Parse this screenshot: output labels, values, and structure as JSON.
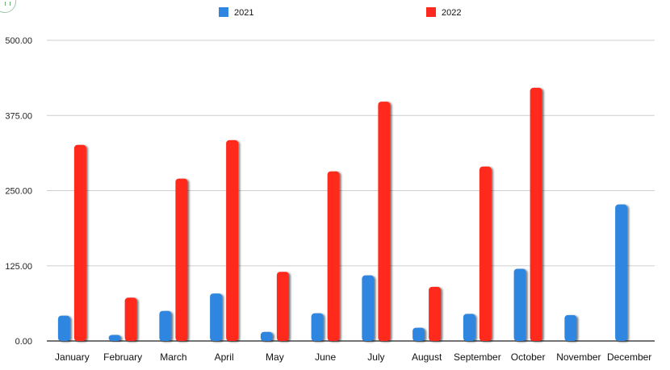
{
  "chart_data": {
    "type": "bar",
    "categories": [
      "January",
      "February",
      "March",
      "April",
      "May",
      "June",
      "July",
      "August",
      "September",
      "October",
      "November",
      "December"
    ],
    "series": [
      {
        "name": "2021",
        "color": "#2f86e0",
        "values": [
          42,
          10,
          50,
          79,
          15,
          46,
          109,
          22,
          45,
          120,
          43,
          227
        ]
      },
      {
        "name": "2022",
        "color": "#ff2a1f",
        "values": [
          326,
          72,
          270,
          334,
          115,
          282,
          398,
          90,
          290,
          421,
          null,
          null
        ]
      }
    ],
    "y_ticks": [
      "0.00",
      "125.00",
      "250.00",
      "375.00",
      "500.00"
    ],
    "ylim": [
      0,
      500
    ],
    "grid": true,
    "legend_position": "top"
  }
}
